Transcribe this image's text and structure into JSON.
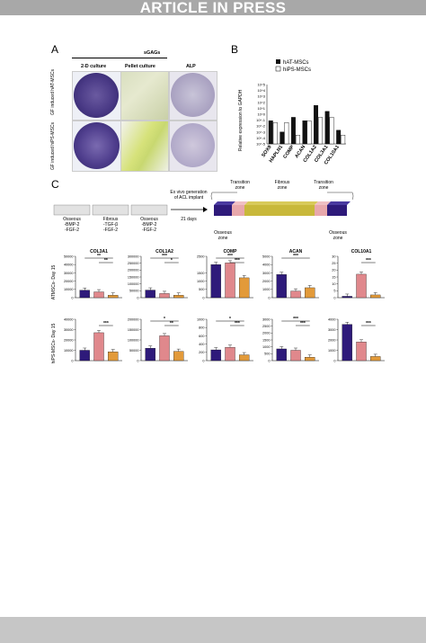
{
  "banner": "ARTICLE IN PRESS",
  "panel_a": {
    "label": "A",
    "header": "sGAGs",
    "columns": [
      "2-D culture",
      "Pellet culture",
      "ALP"
    ],
    "rows": [
      "GF induced hAT-MSCs",
      "GF induced hiPS-MSCs"
    ]
  },
  "panel_b": {
    "label": "B",
    "ylabel": "Relative expression to GAPDH",
    "legend": [
      "hAT-MSCs",
      "hiPS-MSCs"
    ],
    "colors": {
      "hAT": "#111111",
      "hiPS": "#ffffff"
    }
  },
  "panel_c": {
    "label": "C",
    "protocol": {
      "bars": [
        {
          "top": "Osseous",
          "lines": [
            "-BMP-2",
            "-FGF-2"
          ]
        },
        {
          "top": "Fibrous",
          "lines": [
            "-TGF-β",
            "-FGF-2"
          ]
        },
        {
          "top": "Osseous",
          "lines": [
            "-BMP-2",
            "-FGF-2"
          ]
        }
      ],
      "arrow_top": [
        "Ex vivo generation",
        "of ACL implant"
      ],
      "arrow_bottom": "21 days"
    },
    "implant": {
      "transition_zone": [
        "Transition",
        "zone"
      ],
      "fibrous_zone": [
        "Fibrous",
        "zone"
      ],
      "osseous_zone": [
        "Osseous",
        "zone"
      ]
    },
    "row_labels": [
      "ATMSCs- Day 15",
      "hiPS-MSCs- Day 15"
    ],
    "colors": {
      "osseous": "#2e1a7a",
      "fibrous": "#e0888c",
      "zone3": "#e29a3a"
    }
  },
  "chart_data": [
    {
      "type": "bar",
      "title": "",
      "ylabel": "Relative expression to GAPDH",
      "yscale": "log",
      "categories": [
        "SOX9",
        "HAPLN1",
        "COMP",
        "ACAN",
        "COL1A2",
        "COL3A1",
        "COL10A1"
      ],
      "series": [
        {
          "name": "hAT-MSCs",
          "values": [
            0.08,
            0.001,
            0.3,
            0.08,
            30,
            3,
            0.002
          ]
        },
        {
          "name": "hiPS-MSCs",
          "values": [
            0.04,
            0.04,
            0.0003,
            0.08,
            0.3,
            0.3,
            0.0003
          ]
        }
      ],
      "yticks": [
        "10^5",
        "10^4",
        "10^3",
        "10^2",
        "10^1",
        "10^0",
        "10^-1",
        "10^-2",
        "10^-3",
        "10^-4",
        "10^-5"
      ]
    },
    {
      "type": "bar",
      "title": "COL3A1",
      "row": "ATMSCs- Day 15",
      "ylim": [
        0,
        50000
      ],
      "yticks": [
        "0",
        "10000",
        "20000",
        "30000",
        "40000",
        "50000"
      ],
      "values": [
        9000,
        7000,
        3000
      ],
      "sig": [
        "**",
        "**"
      ]
    },
    {
      "type": "bar",
      "title": "COL1A2",
      "row": "ATMSCs- Day 15",
      "ylim": [
        0,
        300000
      ],
      "yticks": [
        "0",
        "50000",
        "100000",
        "150000",
        "200000",
        "250000",
        "300000"
      ],
      "values": [
        55000,
        30000,
        18000
      ],
      "sig": [
        "***",
        "*"
      ]
    },
    {
      "type": "bar",
      "title": "COMP",
      "row": "ATMSCs- Day 15",
      "ylim": [
        0,
        2500
      ],
      "yticks": [
        "0",
        "500",
        "1000",
        "1500",
        "2500"
      ],
      "values": [
        2000,
        2100,
        1200
      ],
      "sig": [
        "***",
        "***"
      ]
    },
    {
      "type": "bar",
      "title": "ACAN",
      "row": "ATMSCs- Day 15",
      "ylim": [
        0,
        5000
      ],
      "yticks": [
        "0",
        "1000",
        "2000",
        "3000",
        "4000",
        "5000"
      ],
      "values": [
        2800,
        800,
        1200
      ],
      "sig": [
        "***",
        ""
      ]
    },
    {
      "type": "bar",
      "title": "COL10A1",
      "row": "ATMSCs- Day 15",
      "ylim": [
        0,
        30
      ],
      "yticks": [
        "0",
        "5",
        "10",
        "15",
        "20",
        "25",
        "30"
      ],
      "values": [
        1,
        17,
        2
      ],
      "sig": [
        "",
        "***"
      ]
    },
    {
      "type": "bar",
      "title": "",
      "row": "hiPS-MSCs- Day 15",
      "ylim": [
        0,
        40000
      ],
      "yticks": [
        "0",
        "10000",
        "20000",
        "30000",
        "40000"
      ],
      "values": [
        10000,
        27000,
        8500
      ],
      "sig": [
        "",
        "***"
      ]
    },
    {
      "type": "bar",
      "title": "",
      "row": "hiPS-MSCs- Day 15",
      "ylim": [
        0,
        200000
      ],
      "yticks": [
        "0",
        "50000",
        "100000",
        "150000",
        "200000"
      ],
      "values": [
        60000,
        120000,
        45000
      ],
      "sig": [
        "*",
        "**"
      ]
    },
    {
      "type": "bar",
      "title": "",
      "row": "hiPS-MSCs- Day 15",
      "ylim": [
        0,
        1000
      ],
      "yticks": [
        "0",
        "200",
        "400",
        "600",
        "800",
        "1000"
      ],
      "values": [
        260,
        320,
        140
      ],
      "sig": [
        "*",
        "***"
      ]
    },
    {
      "type": "bar",
      "title": "",
      "row": "hiPS-MSCs- Day 15",
      "ylim": [
        0,
        3000
      ],
      "yticks": [
        "0",
        "500",
        "1000",
        "1500",
        "2000",
        "2500",
        "3000"
      ],
      "values": [
        850,
        750,
        250
      ],
      "sig": [
        "***",
        "***"
      ]
    },
    {
      "type": "bar",
      "title": "",
      "row": "hiPS-MSCs- Day 15",
      "ylim": [
        0,
        4000
      ],
      "yticks": [
        "0",
        "1000",
        "2000",
        "3000",
        "4000"
      ],
      "values": [
        3500,
        1800,
        400
      ],
      "sig": [
        "",
        "***"
      ]
    }
  ]
}
